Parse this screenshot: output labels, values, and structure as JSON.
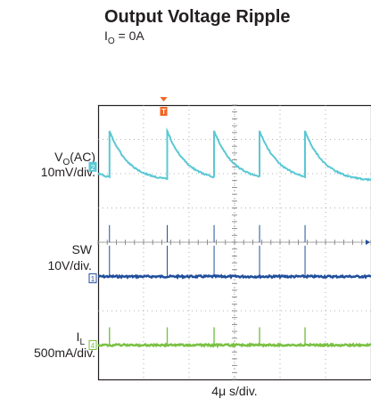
{
  "chart_data": {
    "type": "line",
    "title": "Output Voltage Ripple",
    "subtitle": {
      "main": "I",
      "sub": "O",
      "rest": " = 0A"
    },
    "xlabel": "4μ s/div.",
    "channels": [
      {
        "id": "vo",
        "label_main": "V",
        "label_sub": "O",
        "label_rest": "(AC)",
        "scale": "10mV/div.",
        "marker": "2",
        "color": "#5ac8d4"
      },
      {
        "id": "sw",
        "label_main": "SW",
        "label_sub": "",
        "label_rest": "",
        "scale": "10V/div.",
        "marker": "1",
        "color": "#1f4e9c"
      },
      {
        "id": "il",
        "label_main": "I",
        "label_sub": "L",
        "label_rest": "",
        "scale": "500mA/div.",
        "marker": "4",
        "color": "#7ac143"
      }
    ],
    "trigger_marker": "T",
    "trigger_color": "#f26522",
    "x_divisions": 6,
    "y_divisions": 8,
    "pulse_times_div": [
      0.25,
      1.52,
      2.55,
      3.55,
      4.55
    ],
    "grid": true
  }
}
